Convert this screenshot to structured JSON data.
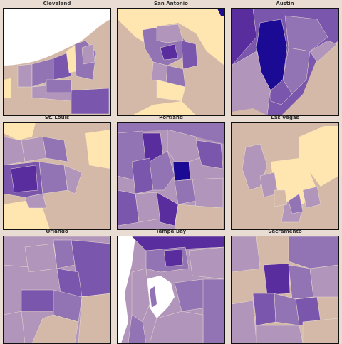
{
  "panels": [
    {
      "title": "Cleveland"
    },
    {
      "title": "San Antonio"
    },
    {
      "title": "Austin"
    },
    {
      "title": "St. Louis"
    },
    {
      "title": "Portland"
    },
    {
      "title": "Las Vegas"
    },
    {
      "title": "Orlando"
    },
    {
      "title": "Tampa Bay"
    },
    {
      "title": "Sacramento"
    }
  ],
  "palette": {
    "background": "#e9ddd3",
    "water": "#ffffff",
    "level_0": "#ffe6b0",
    "level_1": "#d4b9a8",
    "level_2": "#b295ba",
    "level_3": "#9273b3",
    "level_4": "#7a56ad",
    "level_5": "#5a2d9e",
    "level_6": "#1a0a94",
    "border": "#333333"
  }
}
